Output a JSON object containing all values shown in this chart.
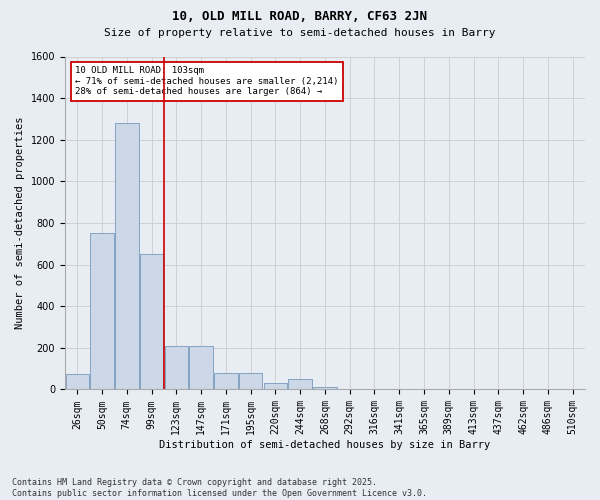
{
  "title1": "10, OLD MILL ROAD, BARRY, CF63 2JN",
  "title2": "Size of property relative to semi-detached houses in Barry",
  "xlabel": "Distribution of semi-detached houses by size in Barry",
  "ylabel": "Number of semi-detached properties",
  "categories": [
    "26sqm",
    "50sqm",
    "74sqm",
    "99sqm",
    "123sqm",
    "147sqm",
    "171sqm",
    "195sqm",
    "220sqm",
    "244sqm",
    "268sqm",
    "292sqm",
    "316sqm",
    "341sqm",
    "365sqm",
    "389sqm",
    "413sqm",
    "437sqm",
    "462sqm",
    "486sqm",
    "510sqm"
  ],
  "values": [
    75,
    750,
    1280,
    650,
    210,
    210,
    80,
    80,
    30,
    50,
    10,
    0,
    0,
    0,
    0,
    0,
    0,
    0,
    0,
    0,
    0
  ],
  "bar_color": "#ccd8e8",
  "bar_edge_color": "#7799bb",
  "ylim": [
    0,
    1600
  ],
  "yticks": [
    0,
    200,
    400,
    600,
    800,
    1000,
    1200,
    1400,
    1600
  ],
  "property_line_color": "#cc0000",
  "annotation_line1": "10 OLD MILL ROAD: 103sqm",
  "annotation_line2": "← 71% of semi-detached houses are smaller (2,214)",
  "annotation_line3": "28% of semi-detached houses are larger (864) →",
  "annotation_box_color": "#ffffff",
  "annotation_box_edge": "#cc0000",
  "footer": "Contains HM Land Registry data © Crown copyright and database right 2025.\nContains public sector information licensed under the Open Government Licence v3.0.",
  "grid_color": "#cccccc",
  "bg_color": "#e8edf4",
  "title1_fontsize": 9,
  "title2_fontsize": 8,
  "axis_label_fontsize": 7.5,
  "tick_fontsize": 7,
  "annotation_fontsize": 6.5,
  "footer_fontsize": 6
}
